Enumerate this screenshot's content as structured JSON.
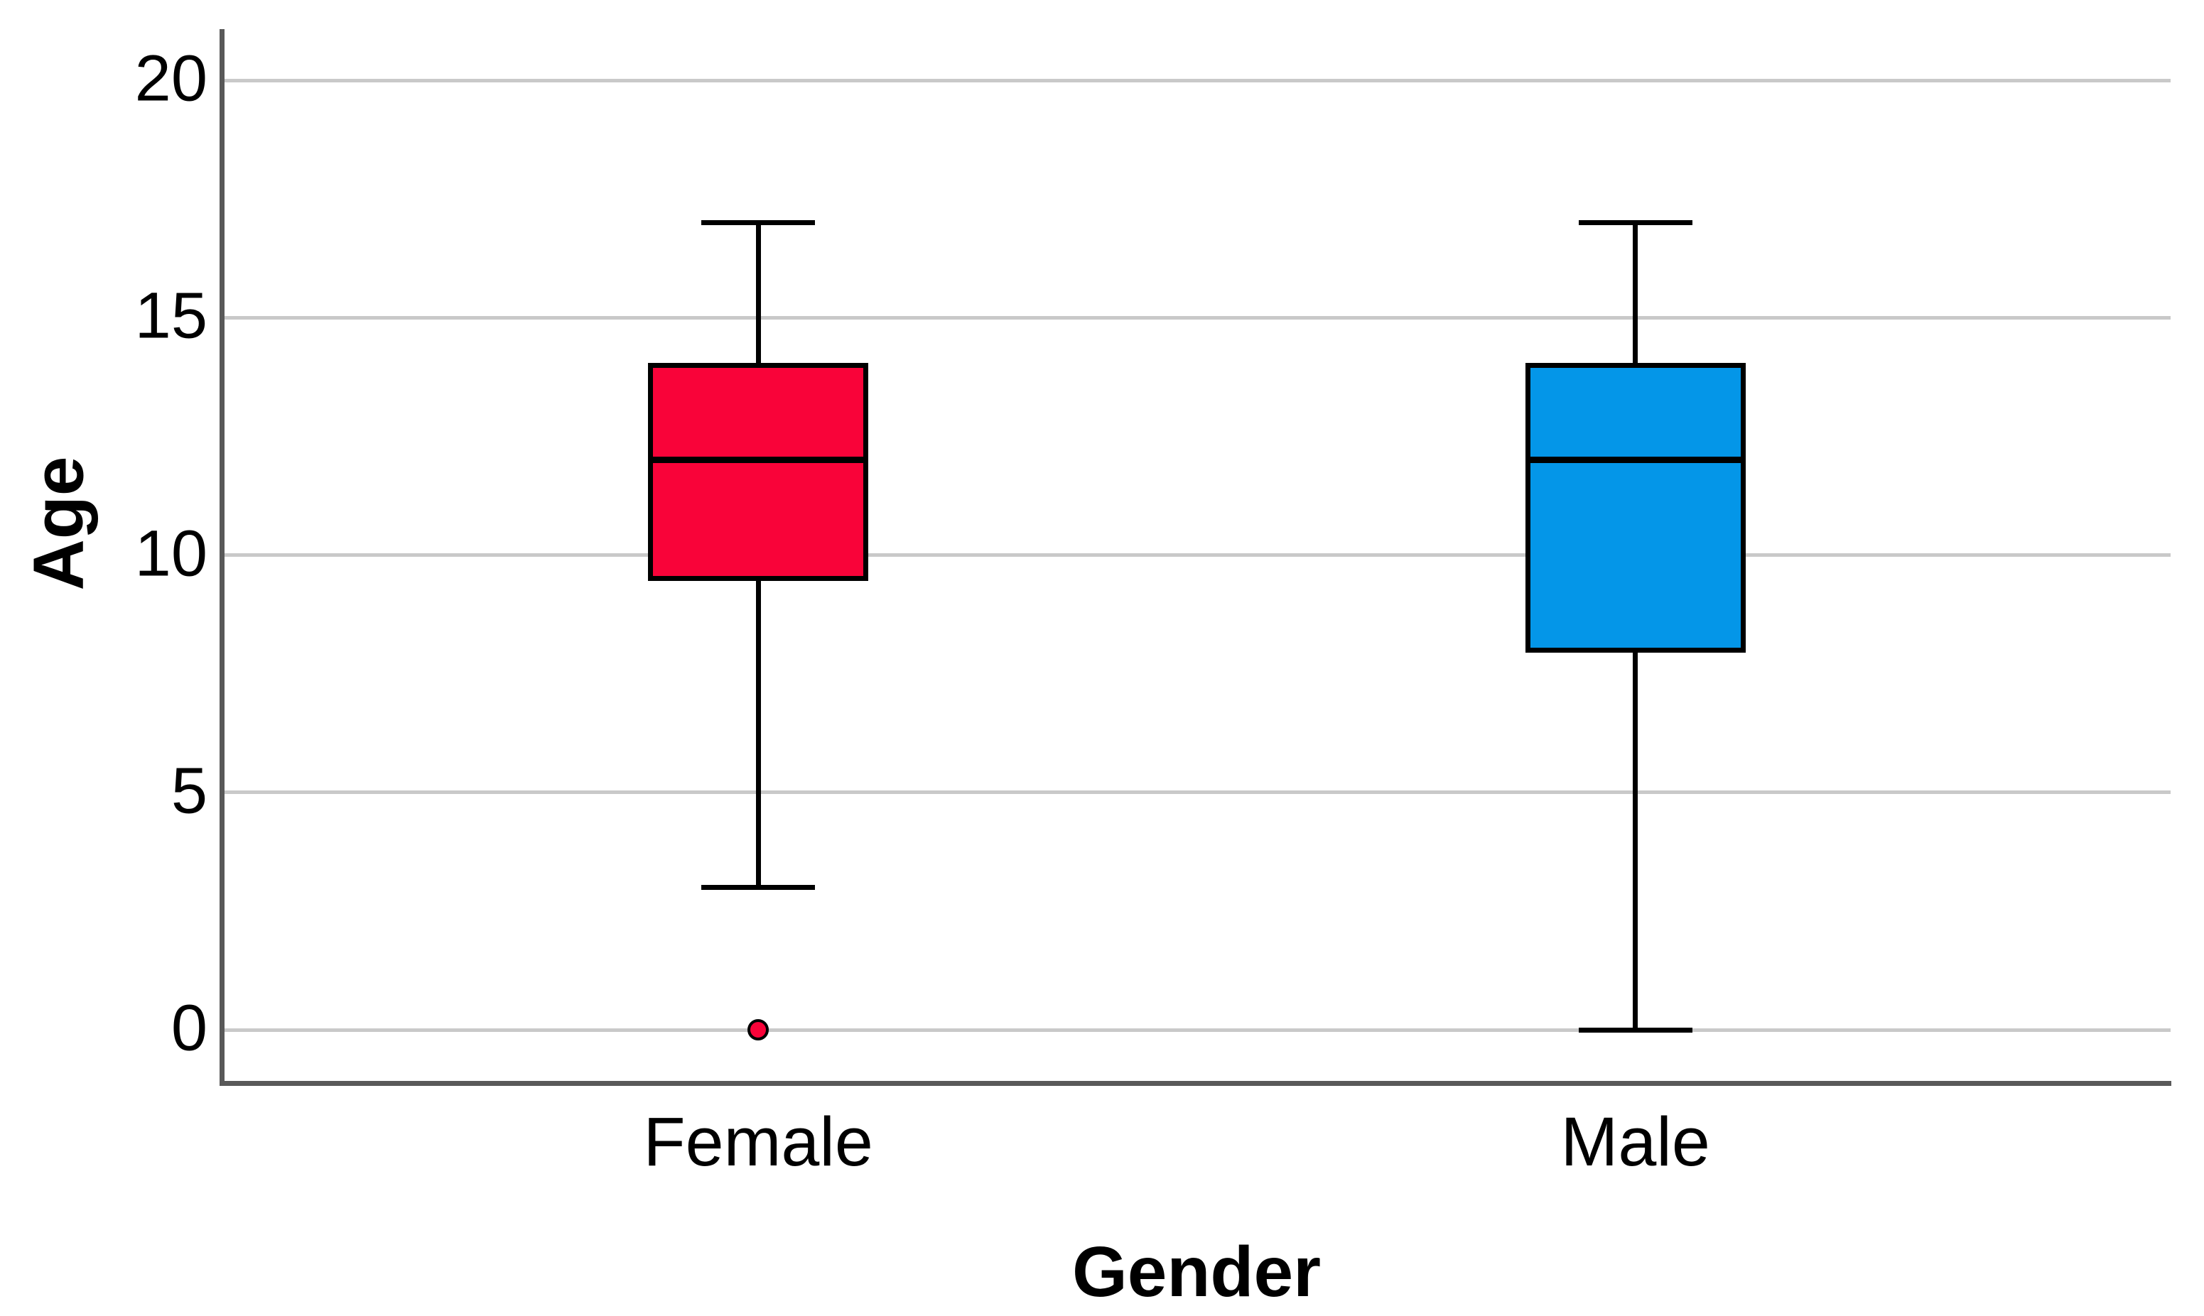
{
  "chart_data": {
    "type": "boxplot",
    "title": "",
    "xlabel": "Gender",
    "ylabel": "Age",
    "categories": [
      "Female",
      "Male"
    ],
    "yticks": [
      0,
      5,
      10,
      15,
      20
    ],
    "ytick_labels": [
      "0",
      "5",
      "10",
      "15",
      "20"
    ],
    "ylim": [
      0,
      20
    ],
    "grid": "horizontal-only",
    "legend": "none",
    "series": [
      {
        "name": "Female",
        "color": "#F90339",
        "whisker_low": 3,
        "q1": 9.5,
        "median": 12,
        "q3": 14,
        "whisker_high": 17,
        "outliers": [
          0
        ]
      },
      {
        "name": "Male",
        "color": "#0496E8",
        "whisker_low": 0,
        "q1": 8,
        "median": 12,
        "q3": 14,
        "whisker_high": 17,
        "outliers": []
      }
    ],
    "colors": {
      "background": "#FFFFFF",
      "gridline": "#C9C9C9",
      "axis_line": "#595959",
      "box_border": "#000000",
      "median": "#000000",
      "text": "#000000"
    }
  }
}
